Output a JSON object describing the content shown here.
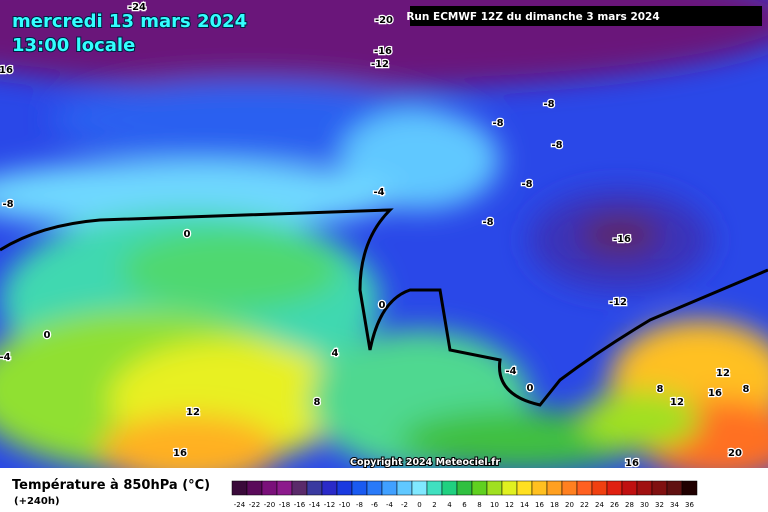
{
  "header": {
    "date": "mercredi 13 mars 2024",
    "time": "13:00 locale",
    "run": "Run ECMWF 12Z du dimanche 3 mars 2024"
  },
  "contour_labels": [
    -24,
    -20,
    -16,
    -12,
    16,
    -8,
    -8,
    -8,
    -8,
    -4,
    -8,
    -8,
    0,
    -16,
    -12,
    0,
    0,
    4,
    -4,
    -4,
    0,
    12,
    8,
    16,
    12,
    8,
    8,
    12,
    16,
    16,
    20
  ],
  "copyright": "Copyright 2024 Meteociel.fr",
  "legend": {
    "title": "Température à 850hPa (°C)",
    "subtitle": "(+240h)",
    "values": [
      -24,
      -22,
      -20,
      -18,
      -16,
      -14,
      -12,
      -10,
      -8,
      -6,
      -4,
      -2,
      0,
      2,
      4,
      6,
      8,
      10,
      12,
      14,
      16,
      18,
      20,
      22,
      24,
      26,
      28,
      30,
      32,
      34,
      36
    ],
    "colors": [
      "#3a0a3a",
      "#5a0a5a",
      "#7a107a",
      "#8c1a8c",
      "#5a2a6a",
      "#3a3aa0",
      "#2a2ac8",
      "#1a3ae0",
      "#1a5af0",
      "#2a7af8",
      "#40a0ff",
      "#60c8ff",
      "#80e8ff",
      "#40e0c0",
      "#20d080",
      "#30c040",
      "#60d020",
      "#a0e020",
      "#e0f020",
      "#ffe020",
      "#ffc020",
      "#ffa020",
      "#ff8020",
      "#ff6020",
      "#f04010",
      "#e02010",
      "#c01010",
      "#a01010",
      "#801010",
      "#601010",
      "#200000"
    ]
  }
}
